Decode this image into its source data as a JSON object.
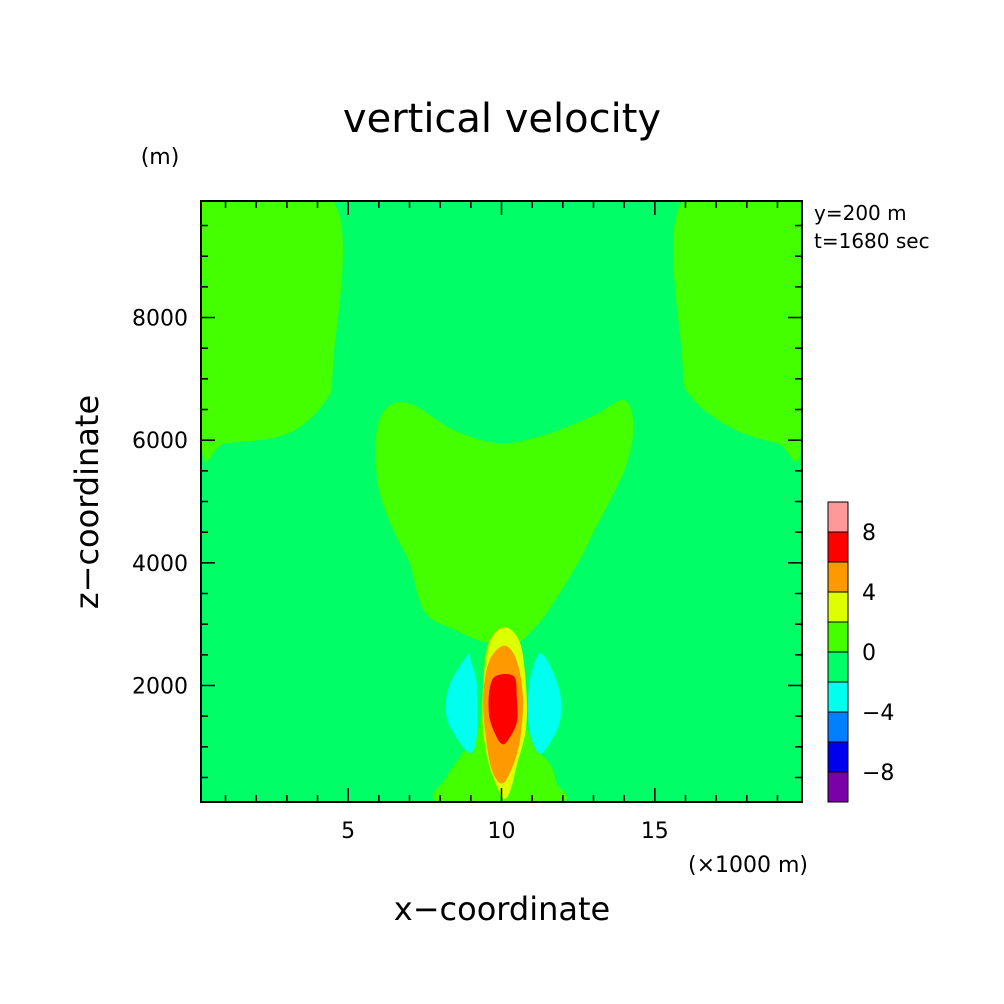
{
  "chart_data": {
    "type": "contour",
    "title": "vertical velocity",
    "xlabel": "x−coordinate",
    "ylabel": "z−coordinate",
    "x_unit": "(×1000 m)",
    "y_unit": "(m)",
    "annotations": [
      "y=200 m",
      "t=1680 sec"
    ],
    "xlim": [
      0.2,
      19.8
    ],
    "ylim": [
      100,
      9900
    ],
    "x_ticks": [
      5,
      10,
      15
    ],
    "x_tick_labels": [
      "5",
      "10",
      "15"
    ],
    "y_ticks": [
      2000,
      4000,
      6000,
      8000
    ],
    "y_tick_labels": [
      "2000",
      "4000",
      "6000",
      "8000"
    ],
    "colorbar": {
      "levels": [
        -10,
        -8,
        -6,
        -4,
        -2,
        0,
        2,
        4,
        6,
        8,
        10
      ],
      "colors": [
        "#7a00a8",
        "#0000ee",
        "#0080ff",
        "#00ffee",
        "#00ff66",
        "#44ff00",
        "#ddff00",
        "#ff9900",
        "#ff0000",
        "#ff9999"
      ],
      "tick_values": [
        -8,
        -4,
        0,
        4,
        8
      ],
      "tick_labels": [
        "−8",
        "−4",
        "0",
        "4",
        "8"
      ]
    },
    "background_level": "0 to -2",
    "regions": [
      {
        "name": "upper-left-updraft",
        "range": "0 to 2",
        "color": "#44ff00",
        "outline": [
          [
            0.2,
            9900
          ],
          [
            4.5,
            9900
          ],
          [
            4.5,
            7200
          ],
          [
            4.2,
            6600
          ],
          [
            3.0,
            6100
          ],
          [
            1.0,
            5950
          ],
          [
            0.2,
            5950
          ]
        ]
      },
      {
        "name": "upper-right-updraft",
        "range": "0 to 2",
        "color": "#44ff00",
        "outline": [
          [
            15.9,
            9900
          ],
          [
            19.8,
            9900
          ],
          [
            19.8,
            5950
          ],
          [
            19.0,
            5950
          ],
          [
            17.5,
            6200
          ],
          [
            16.2,
            6700
          ],
          [
            15.9,
            7300
          ]
        ]
      },
      {
        "name": "central-updraft",
        "range": "0 to 2",
        "color": "#44ff00",
        "outline": [
          [
            6.2,
            6500
          ],
          [
            7.0,
            6600
          ],
          [
            8.5,
            6150
          ],
          [
            10.0,
            5950
          ],
          [
            11.5,
            6100
          ],
          [
            13.0,
            6400
          ],
          [
            14.0,
            6650
          ],
          [
            14.3,
            6200
          ],
          [
            14.0,
            5500
          ],
          [
            13.0,
            4500
          ],
          [
            12.5,
            4000
          ],
          [
            11.5,
            3200
          ],
          [
            11.0,
            2900
          ],
          [
            10.5,
            2700
          ],
          [
            9.5,
            2700
          ],
          [
            8.5,
            2900
          ],
          [
            7.5,
            3200
          ],
          [
            7.0,
            4000
          ],
          [
            6.5,
            4500
          ],
          [
            6.0,
            5200
          ],
          [
            5.9,
            6000
          ]
        ]
      },
      {
        "name": "low-updraft",
        "range": "0 to 2",
        "color": "#44ff00",
        "outline": [
          [
            8.0,
            100
          ],
          [
            8.2,
            500
          ],
          [
            8.6,
            800
          ],
          [
            9.0,
            1100
          ],
          [
            9.3,
            1400
          ],
          [
            9.4,
            2000
          ],
          [
            9.5,
            2600
          ],
          [
            10.0,
            2900
          ],
          [
            10.5,
            2600
          ],
          [
            10.7,
            2000
          ],
          [
            10.8,
            1400
          ],
          [
            11.1,
            1000
          ],
          [
            11.6,
            700
          ],
          [
            11.8,
            400
          ],
          [
            11.9,
            100
          ]
        ]
      },
      {
        "name": "left-downdraft",
        "range": "-4 to -2",
        "color": "#00ffee",
        "outline": [
          [
            8.9,
            2500
          ],
          [
            8.3,
            2000
          ],
          [
            8.2,
            1500
          ],
          [
            8.6,
            1100
          ],
          [
            9.0,
            900
          ],
          [
            9.2,
            1200
          ],
          [
            9.2,
            2000
          ],
          [
            9.0,
            2400
          ]
        ]
      },
      {
        "name": "right-downdraft",
        "range": "-4 to -2",
        "color": "#00ffee",
        "outline": [
          [
            11.2,
            2500
          ],
          [
            11.5,
            2400
          ],
          [
            11.9,
            1900
          ],
          [
            11.9,
            1400
          ],
          [
            11.5,
            1000
          ],
          [
            11.2,
            900
          ],
          [
            10.9,
            1300
          ],
          [
            10.9,
            2000
          ]
        ]
      },
      {
        "name": "core-2-4",
        "range": "2 to 4",
        "color": "#ddff00",
        "outline": [
          [
            10.1,
            2950
          ],
          [
            10.6,
            2700
          ],
          [
            10.8,
            2000
          ],
          [
            10.8,
            1300
          ],
          [
            10.5,
            700
          ],
          [
            10.3,
            300
          ],
          [
            10.1,
            150
          ],
          [
            9.9,
            300
          ],
          [
            9.6,
            700
          ],
          [
            9.4,
            1300
          ],
          [
            9.4,
            2000
          ],
          [
            9.6,
            2700
          ]
        ]
      },
      {
        "name": "core-4-6",
        "range": "4 to 6",
        "color": "#ff9900",
        "outline": [
          [
            10.1,
            2650
          ],
          [
            10.5,
            2400
          ],
          [
            10.7,
            1800
          ],
          [
            10.6,
            1100
          ],
          [
            10.3,
            600
          ],
          [
            10.0,
            400
          ],
          [
            9.7,
            600
          ],
          [
            9.5,
            1100
          ],
          [
            9.4,
            1800
          ],
          [
            9.6,
            2400
          ]
        ]
      },
      {
        "name": "core-6-8",
        "range": "6 to 8",
        "color": "#ff0000",
        "outline": [
          [
            9.8,
            2150
          ],
          [
            10.4,
            2150
          ],
          [
            10.5,
            1800
          ],
          [
            10.5,
            1400
          ],
          [
            10.2,
            1100
          ],
          [
            10.0,
            1050
          ],
          [
            9.8,
            1200
          ],
          [
            9.6,
            1500
          ],
          [
            9.6,
            1900
          ]
        ]
      }
    ]
  }
}
